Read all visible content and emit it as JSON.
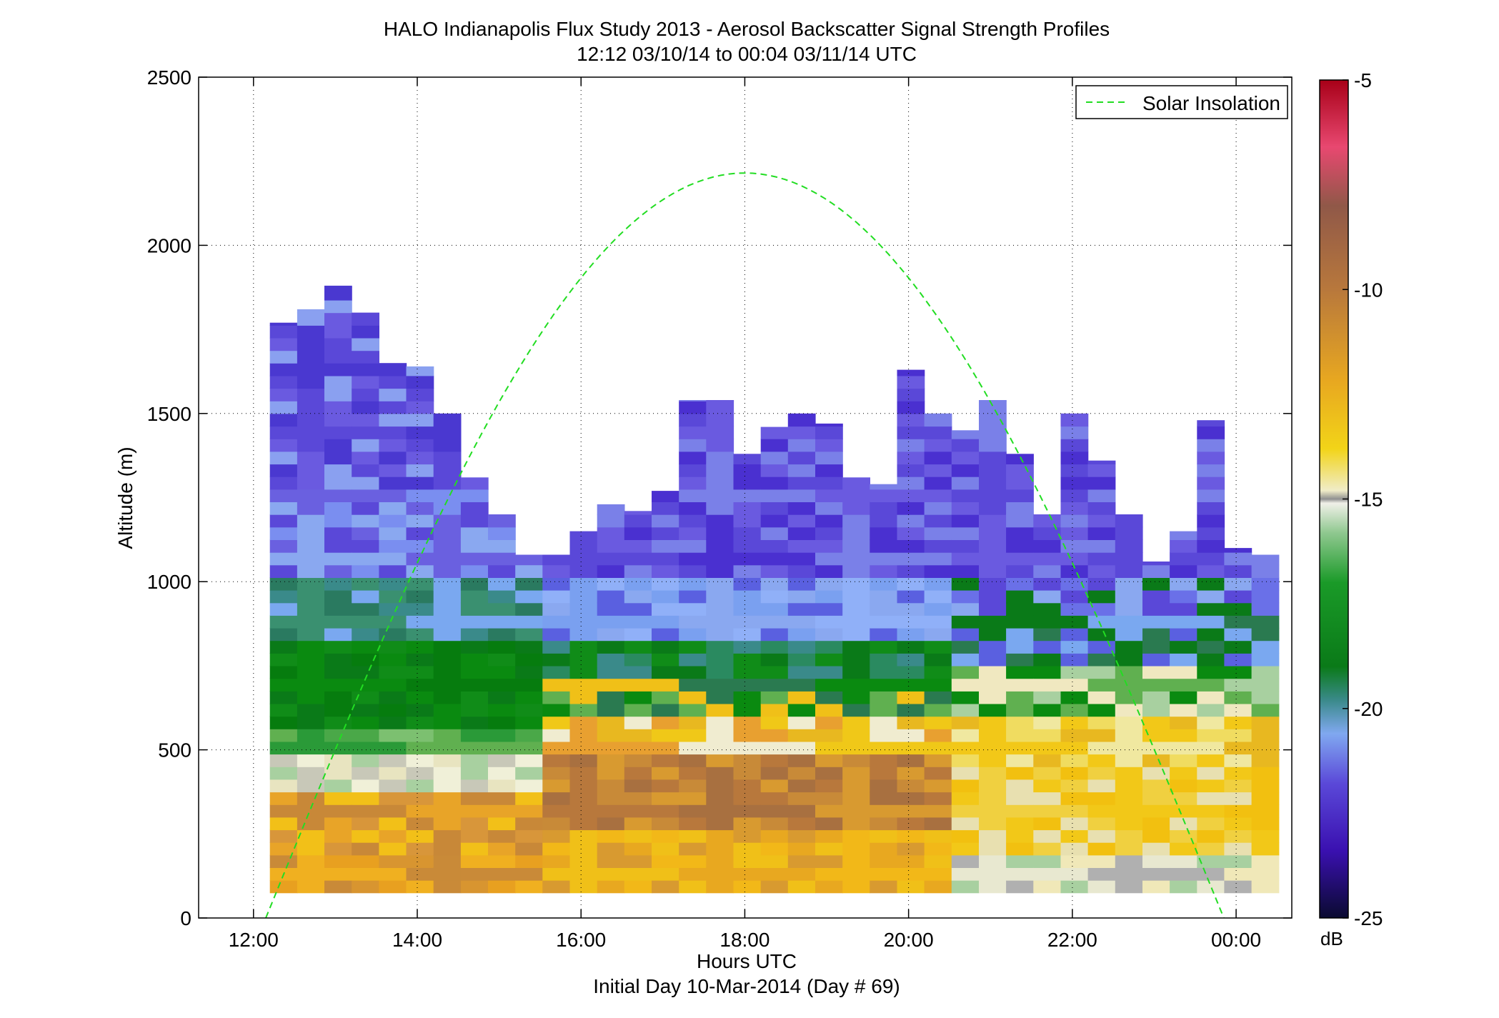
{
  "chart_data": {
    "type": "heatmap",
    "title": "HALO Indianapolis Flux Study 2013 - Aerosol Backscatter Signal Strength Profiles",
    "subtitle": "12:12 03/10/14 to 00:04 03/11/14  UTC",
    "xlabel": "Hours UTC",
    "xlabel2": "Initial Day 10-Mar-2014 (Day # 69)",
    "ylabel": "Altitude (m)",
    "x_ticks": [
      "12:00",
      "14:00",
      "16:00",
      "18:00",
      "20:00",
      "22:00",
      "00:00"
    ],
    "x_tick_hours": [
      12,
      14,
      16,
      18,
      20,
      22,
      24
    ],
    "xlim_hours": [
      11.33,
      24.68
    ],
    "y_ticks": [
      0,
      500,
      1000,
      1500,
      2000,
      2500
    ],
    "ylim": [
      0,
      2500
    ],
    "grid": true,
    "colorbar": {
      "label": "dB",
      "range": [
        -25,
        -5
      ],
      "ticks": [
        -5,
        -10,
        -15,
        -20,
        -25
      ]
    },
    "legend": {
      "position": "top-right",
      "entries": [
        "Solar Insolation"
      ]
    },
    "line_color": "#22dd22",
    "solar_insolation": {
      "name": "Solar Insolation",
      "x_hours": [
        12.15,
        18.0,
        23.85
      ],
      "peak_altitude_m": 2215
    },
    "grid_x_start_hours": 12.2,
    "cell_hours": 0.333,
    "cell_m": 37.5,
    "profiles": [
      {
        "top_m": 1770,
        "palette": "pA"
      },
      {
        "top_m": 1810,
        "palette": "pA"
      },
      {
        "top_m": 1880,
        "palette": "pA"
      },
      {
        "top_m": 1800,
        "palette": "pA"
      },
      {
        "top_m": 1650,
        "palette": "pA"
      },
      {
        "top_m": 1640,
        "palette": "pA"
      },
      {
        "top_m": 1500,
        "palette": "pA"
      },
      {
        "top_m": 1310,
        "palette": "pA"
      },
      {
        "top_m": 1200,
        "palette": "pA"
      },
      {
        "top_m": 1080,
        "palette": "pA"
      },
      {
        "top_m": 1080,
        "palette": "pB"
      },
      {
        "top_m": 1150,
        "palette": "pB"
      },
      {
        "top_m": 1230,
        "palette": "pB"
      },
      {
        "top_m": 1210,
        "palette": "pB"
      },
      {
        "top_m": 1270,
        "palette": "pB"
      },
      {
        "top_m": 1540,
        "palette": "pB"
      },
      {
        "top_m": 1540,
        "palette": "pB"
      },
      {
        "top_m": 1380,
        "palette": "pB"
      },
      {
        "top_m": 1460,
        "palette": "pB"
      },
      {
        "top_m": 1500,
        "palette": "pB"
      },
      {
        "top_m": 1470,
        "palette": "pB"
      },
      {
        "top_m": 1310,
        "palette": "pB"
      },
      {
        "top_m": 1290,
        "palette": "pB"
      },
      {
        "top_m": 1630,
        "palette": "pB"
      },
      {
        "top_m": 1500,
        "palette": "pB"
      },
      {
        "top_m": 1450,
        "palette": "pC"
      },
      {
        "top_m": 1540,
        "palette": "pC"
      },
      {
        "top_m": 1380,
        "palette": "pC"
      },
      {
        "top_m": 1200,
        "palette": "pC"
      },
      {
        "top_m": 1500,
        "palette": "pC"
      },
      {
        "top_m": 1360,
        "palette": "pC"
      },
      {
        "top_m": 1200,
        "palette": "pC"
      },
      {
        "top_m": 1060,
        "palette": "pC"
      },
      {
        "top_m": 1150,
        "palette": "pC"
      },
      {
        "top_m": 1480,
        "palette": "pC"
      },
      {
        "top_m": 1100,
        "palette": "pC"
      },
      {
        "top_m": 1080,
        "palette": "pC"
      }
    ],
    "palettes": {
      "pA": {
        "bottom_m": 75,
        "bands": [
          {
            "to_m": 180,
            "colors": [
              "#e8a020",
              "#d89530",
              "#c98a38",
              "#f0b020"
            ]
          },
          {
            "to_m": 370,
            "colors": [
              "#d8963a",
              "#e8a428",
              "#c88838",
              "#f2c018"
            ]
          },
          {
            "to_m": 470,
            "colors": [
              "#e8e4c0",
              "#f0f0d8",
              "#c8c8b8",
              "#a8d0a0"
            ]
          },
          {
            "to_m": 560,
            "colors": [
              "#60b050",
              "#2a9a38",
              "#4aa848",
              "#7cc070"
            ]
          },
          {
            "to_m": 800,
            "colors": [
              "#0a8a10",
              "#0a7a18",
              "#108c18",
              "#067c0e"
            ]
          },
          {
            "to_m": 1000,
            "colors": [
              "#2a7a60",
              "#3a8a8a",
              "#7aa8f0",
              "#3a9070"
            ]
          },
          {
            "to_m": 1250,
            "colors": [
              "#7a8ef0",
              "#6a60e0",
              "#8aa8f0",
              "#5a48d8"
            ]
          },
          {
            "to_m": 3000,
            "colors": [
              "#5a48d8",
              "#6a5ae0",
              "#8aa0f0",
              "#4a38d0"
            ]
          }
        ]
      },
      "pB": {
        "bottom_m": 75,
        "bands": [
          {
            "to_m": 250,
            "colors": [
              "#e8a820",
              "#f0c018",
              "#d89a30",
              "#f2b818"
            ]
          },
          {
            "to_m": 480,
            "colors": [
              "#b8783c",
              "#c88a38",
              "#d89a30",
              "#a87040"
            ]
          },
          {
            "to_m": 600,
            "colors": [
              "#e8b820",
              "#f0c818",
              "#f0ecd0",
              "#e8a030"
            ]
          },
          {
            "to_m": 700,
            "colors": [
              "#0a8a10",
              "#2a7a50",
              "#f0c018",
              "#60b050"
            ]
          },
          {
            "to_m": 820,
            "colors": [
              "#0a7a18",
              "#2a8a60",
              "#108c18",
              "#3a8a8a"
            ]
          },
          {
            "to_m": 1000,
            "colors": [
              "#8aa8f0",
              "#7aa0f0",
              "#5a60e0",
              "#90b0f8"
            ]
          },
          {
            "to_m": 3000,
            "colors": [
              "#5a48d8",
              "#6a5ae0",
              "#7a80e8",
              "#4a30d0"
            ]
          }
        ]
      },
      "pC": {
        "bottom_m": 75,
        "bands": [
          {
            "to_m": 180,
            "colors": [
              "#f0e8b8",
              "#b0b0b0",
              "#e8e8d0",
              "#a8d0a0"
            ]
          },
          {
            "to_m": 420,
            "colors": [
              "#f2c818",
              "#f0d040",
              "#e8e0b0",
              "#f2c010"
            ]
          },
          {
            "to_m": 600,
            "colors": [
              "#f2c818",
              "#f0dc60",
              "#e8b820",
              "#f0e8a0"
            ]
          },
          {
            "to_m": 750,
            "colors": [
              "#0a8a10",
              "#a8d0a0",
              "#60b050",
              "#f0e8c0"
            ]
          },
          {
            "to_m": 900,
            "colors": [
              "#2a7a50",
              "#7aa8f0",
              "#0a7a18",
              "#5a60e0"
            ]
          },
          {
            "to_m": 1000,
            "colors": [
              "#6a70e8",
              "#8aa8f0",
              "#5a48d8",
              "#0a7a18"
            ]
          },
          {
            "to_m": 3000,
            "colors": [
              "#5a48d8",
              "#6a5ae0",
              "#4a30d0",
              "#7a80e8"
            ]
          }
        ]
      }
    }
  }
}
